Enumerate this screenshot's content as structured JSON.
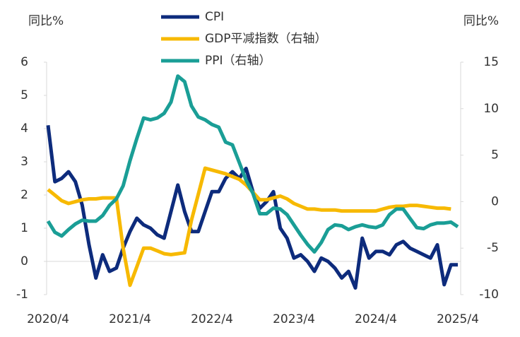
{
  "chart_data": {
    "type": "line",
    "y_label": "同比%",
    "y2_label": "同比%",
    "categories": [
      "2020/4",
      null,
      null,
      null,
      null,
      null,
      null,
      null,
      null,
      null,
      null,
      null,
      "2021/4",
      null,
      null,
      null,
      null,
      null,
      null,
      null,
      null,
      null,
      null,
      null,
      "2022/4",
      null,
      null,
      null,
      null,
      null,
      null,
      null,
      null,
      null,
      null,
      null,
      "2023/4",
      null,
      null,
      null,
      null,
      null,
      null,
      null,
      null,
      null,
      null,
      null,
      "2024/4",
      null,
      null,
      null,
      null,
      null,
      null,
      null,
      null,
      null,
      null,
      null,
      "2025/4"
    ],
    "series": [
      {
        "name": "CPI",
        "color": "#0d2b7c",
        "axis": "y",
        "values": [
          4.1,
          2.4,
          2.5,
          2.7,
          2.4,
          1.7,
          0.5,
          -0.5,
          0.2,
          -0.3,
          -0.2,
          0.4,
          0.9,
          1.3,
          1.1,
          1.0,
          0.8,
          0.7,
          1.5,
          2.3,
          1.5,
          0.9,
          0.9,
          1.5,
          2.1,
          2.1,
          2.5,
          2.7,
          2.5,
          2.8,
          2.1,
          1.6,
          1.8,
          2.1,
          1.0,
          0.7,
          0.1,
          0.2,
          0.0,
          -0.3,
          0.1,
          0.0,
          -0.2,
          -0.5,
          -0.3,
          -0.8,
          0.7,
          0.1,
          0.3,
          0.3,
          0.2,
          0.5,
          0.6,
          0.4,
          0.3,
          0.2,
          0.1,
          0.5,
          -0.7,
          -0.1,
          -0.1
        ]
      },
      {
        "name": "GDP平减指数（右轴）",
        "color": "#f7b900",
        "axis": "y2",
        "values": [
          1.3,
          0.7,
          0.1,
          -0.2,
          0.0,
          0.2,
          0.3,
          0.3,
          0.4,
          0.4,
          0.4,
          -5.0,
          -9.0,
          -7.0,
          -5.0,
          -5.0,
          -5.3,
          -5.6,
          -5.7,
          -5.6,
          -5.5,
          -2.0,
          0.8,
          3.6,
          3.4,
          3.2,
          3.0,
          2.7,
          2.4,
          1.8,
          1.0,
          0.2,
          0.2,
          0.4,
          0.6,
          0.3,
          -0.2,
          -0.5,
          -0.8,
          -0.8,
          -0.9,
          -0.9,
          -0.9,
          -1.0,
          -1.0,
          -1.0,
          -1.0,
          -1.0,
          -1.0,
          -0.8,
          -0.6,
          -0.5,
          -0.5,
          -0.4,
          -0.4,
          -0.5,
          -0.6,
          -0.7,
          -0.7,
          -0.8,
          null
        ]
      },
      {
        "name": "PPI（右轴）",
        "color": "#1a9e96",
        "axis": "y2",
        "values": [
          -2.1,
          -3.3,
          -3.7,
          -3.0,
          -2.4,
          -2.0,
          -2.1,
          -2.1,
          -1.5,
          -0.4,
          0.3,
          1.7,
          4.4,
          6.8,
          9.0,
          8.8,
          9.0,
          9.5,
          10.7,
          13.5,
          12.9,
          10.3,
          9.1,
          8.8,
          8.3,
          8.0,
          6.4,
          6.1,
          4.2,
          2.3,
          0.9,
          -1.3,
          -1.3,
          -0.7,
          -0.8,
          -1.4,
          -2.5,
          -3.6,
          -4.6,
          -5.4,
          -4.4,
          -3.0,
          -2.5,
          -2.6,
          -3.0,
          -2.7,
          -2.5,
          -2.7,
          -2.8,
          -2.5,
          -1.4,
          -0.8,
          -0.8,
          -1.8,
          -2.8,
          -2.9,
          -2.5,
          -2.3,
          -2.3,
          -2.2,
          -2.7
        ]
      }
    ],
    "ylim": [
      -1,
      6
    ],
    "yticks": [
      -1,
      0,
      1,
      2,
      3,
      4,
      5,
      6
    ],
    "y2lim": [
      -10,
      15
    ],
    "y2ticks": [
      -10,
      -5,
      0,
      5,
      10,
      15
    ],
    "grid": false
  }
}
